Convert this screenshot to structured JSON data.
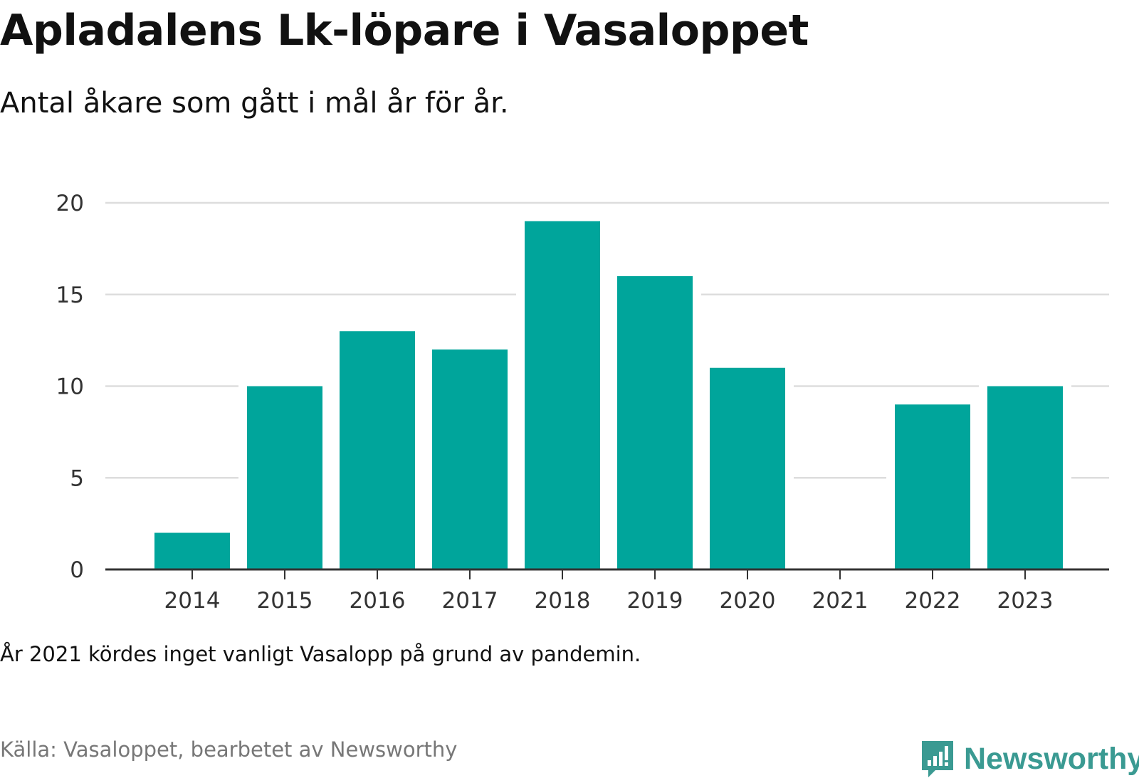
{
  "title": "Apladalens Lk-löpare i Vasaloppet",
  "subtitle": "Antal åkare som gått i mål år för år.",
  "note": "År 2021 kördes inget vanligt Vasalopp på grund av pandemin.",
  "source": "Källa: Vasaloppet, bearbetet av Newsworthy",
  "brand": {
    "name": "Newsworthy",
    "icon": "newsworthy-logo-icon",
    "color": "#3a9a92"
  },
  "colors": {
    "bar": "#00a59b",
    "grid": "#dddddd",
    "axis": "#333333"
  },
  "chart_data": {
    "type": "bar",
    "categories": [
      "2014",
      "2015",
      "2016",
      "2017",
      "2018",
      "2019",
      "2020",
      "2021",
      "2022",
      "2023"
    ],
    "values": [
      2,
      10,
      13,
      12,
      19,
      16,
      11,
      0,
      9,
      10
    ],
    "ylim": [
      0,
      20
    ],
    "yticks": [
      0,
      5,
      10,
      15,
      20
    ],
    "grid": true,
    "legend": "none"
  }
}
